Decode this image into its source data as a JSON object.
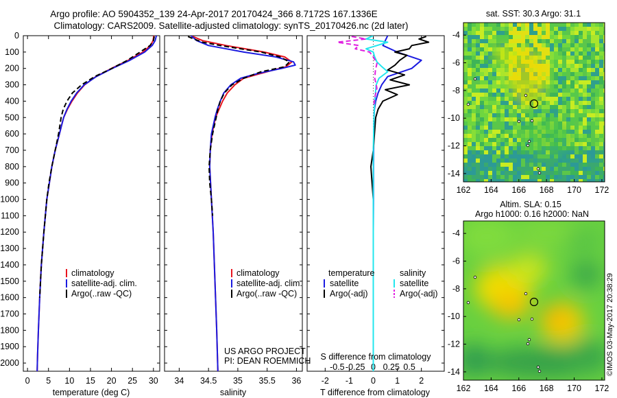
{
  "title": {
    "line1": "Argo profile: AO 5904352_139 24-Apr-2017 20170424_366 8.7172S 167.1336E",
    "line2": "Climatology: CARS2009. Satellite-adjusted climatology: synTS_20170426.nc (2d later)"
  },
  "colors": {
    "climatology": "#e8141e",
    "satellite": "#1a1ae0",
    "argo": "#000000",
    "satellite_salinity": "#22e6ee",
    "argo_salinity_adj": "#e020e0"
  },
  "depth_axis": {
    "ylim": [
      0,
      2050
    ],
    "ticks": [
      "0",
      "100",
      "200",
      "300",
      "400",
      "500",
      "600",
      "700",
      "800",
      "900",
      "1000",
      "1100",
      "1200",
      "1300",
      "1400",
      "1500",
      "1600",
      "1700",
      "1800",
      "1900",
      "2000"
    ]
  },
  "chart_data": [
    {
      "type": "line",
      "name": "temperature-panel",
      "xlabel": "temperature (deg C)",
      "xlim": [
        -1,
        31.5
      ],
      "xticks": [
        "0",
        "5",
        "10",
        "15",
        "20",
        "25",
        "30"
      ],
      "legend": [
        "climatology",
        "satellite-adj. clim.",
        "Argo(..raw -QC)"
      ],
      "series": [
        {
          "name": "climatology",
          "color": "#e8141e",
          "depth": [
            0,
            30,
            60,
            100,
            150,
            200,
            250,
            300,
            350,
            400,
            450,
            500,
            550,
            600,
            700,
            800,
            900,
            1000,
            1200,
            1400,
            1600,
            1800,
            1950,
            2050
          ],
          "values": [
            30.1,
            29.9,
            29.3,
            27.5,
            24.0,
            20.0,
            16.3,
            13.6,
            11.9,
            10.6,
            9.5,
            8.6,
            8.1,
            7.6,
            6.6,
            5.8,
            5.2,
            4.6,
            3.9,
            3.3,
            2.9,
            2.6,
            2.4,
            2.3
          ]
        },
        {
          "name": "satellite-adj. clim.",
          "color": "#1a1ae0",
          "depth": [
            0,
            30,
            60,
            100,
            150,
            200,
            250,
            300,
            350,
            400,
            450,
            500,
            550,
            600,
            700,
            800,
            900,
            1000,
            1200,
            1400,
            1600,
            1800,
            1950,
            2050
          ],
          "values": [
            30.7,
            30.4,
            29.7,
            27.9,
            24.4,
            20.2,
            16.4,
            13.5,
            11.7,
            10.4,
            9.4,
            8.6,
            8.1,
            7.6,
            6.6,
            5.8,
            5.2,
            4.6,
            3.9,
            3.3,
            2.9,
            2.6,
            2.4,
            2.3
          ]
        },
        {
          "name": "Argo(..raw -QC)",
          "color": "#000000",
          "dashed": true,
          "depth": [
            5,
            30,
            60,
            100,
            150,
            200,
            250,
            300,
            350,
            400,
            450,
            500,
            550,
            600,
            700,
            800,
            900,
            1000,
            1200,
            1400,
            1600
          ],
          "values": [
            30.2,
            30.0,
            29.2,
            26.8,
            23.8,
            20.1,
            16.0,
            12.9,
            10.7,
            9.4,
            8.5,
            8.0,
            7.7,
            7.4,
            6.6,
            5.8,
            5.1,
            4.6,
            3.9,
            3.3,
            2.9
          ]
        }
      ]
    },
    {
      "type": "line",
      "name": "salinity-panel",
      "xlabel": "salinity",
      "xlim": [
        33.75,
        36.1
      ],
      "xticks": [
        "34",
        "34.5",
        "35",
        "35.5",
        "36"
      ],
      "legend": [
        "climatology",
        "satellite-adj. clim.",
        "Argo(..raw -QC)"
      ],
      "annotations": [
        "US ARGO PROJECT",
        "PI: DEAN ROEMMICH"
      ],
      "series": [
        {
          "name": "climatology",
          "color": "#e8141e",
          "depth": [
            0,
            30,
            60,
            100,
            130,
            160,
            190,
            220,
            260,
            300,
            350,
            400,
            450,
            500,
            600,
            700,
            800,
            1000,
            1200,
            1400,
            1600,
            1800,
            2050
          ],
          "values": [
            34.2,
            34.4,
            34.8,
            35.45,
            35.8,
            35.92,
            35.82,
            35.5,
            35.1,
            34.95,
            34.82,
            34.74,
            34.68,
            34.62,
            34.56,
            34.53,
            34.52,
            34.55,
            34.58,
            34.6,
            34.62,
            34.64,
            34.66
          ]
        },
        {
          "name": "satellite-adj. clim.",
          "color": "#1a1ae0",
          "depth": [
            0,
            30,
            60,
            100,
            130,
            160,
            180,
            200,
            230,
            260,
            300,
            350,
            400,
            450,
            500,
            600,
            700,
            800,
            1000,
            1200,
            1400,
            1600,
            1800,
            2050
          ],
          "values": [
            34.2,
            34.3,
            34.5,
            35.1,
            35.65,
            35.95,
            35.98,
            35.75,
            35.35,
            35.05,
            34.88,
            34.76,
            34.7,
            34.65,
            34.61,
            34.55,
            34.53,
            34.52,
            34.55,
            34.58,
            34.6,
            34.62,
            34.64,
            34.66
          ]
        },
        {
          "name": "Argo(..raw -QC)",
          "color": "#000000",
          "dashed": true,
          "depth": [
            5,
            20,
            40,
            60,
            80,
            100,
            130,
            160,
            190,
            220,
            260,
            300,
            350,
            400,
            450,
            500,
            600,
            700,
            800,
            900,
            1000,
            1100
          ],
          "values": [
            34.15,
            34.25,
            34.4,
            34.7,
            35.05,
            35.4,
            35.72,
            35.88,
            35.8,
            35.4,
            35.1,
            34.9,
            34.77,
            34.7,
            34.66,
            34.63,
            34.57,
            34.53,
            34.51,
            34.52,
            34.55,
            34.57
          ]
        }
      ]
    },
    {
      "type": "line",
      "name": "difference-panel",
      "xlabel": "T difference from climatology",
      "xlabel_top": "S difference from climatology",
      "xlim": [
        -2.75,
        2.95
      ],
      "xticks": [
        "-2",
        "-1",
        "0",
        "1",
        "2"
      ],
      "sticks": [
        "-0.5",
        "-0.25",
        "0",
        "0.25",
        "0.5"
      ],
      "legend_left_title": "temperature",
      "legend_right_title": "salinity",
      "legend": [
        "satellite",
        "Argo(-adj)",
        "satellite",
        "Argo(-adj)"
      ],
      "series": [
        {
          "name": "T satellite",
          "color": "#1a1ae0",
          "depth": [
            0,
            30,
            60,
            100,
            150,
            200,
            250,
            300,
            350,
            400,
            450,
            500,
            600,
            800,
            1000,
            1200,
            1500,
            2050
          ],
          "values": [
            0.6,
            0.5,
            0.4,
            1.0,
            2.0,
            1.6,
            0.6,
            0.35,
            0.2,
            0.1,
            0.05,
            0.03,
            0.02,
            0.01,
            0.01,
            0.0,
            0.0,
            0.0
          ]
        },
        {
          "name": "T Argo(-adj)",
          "color": "#000000",
          "depth": [
            5,
            20,
            40,
            60,
            80,
            100,
            120,
            150,
            180,
            210,
            240,
            270,
            300,
            330,
            360,
            400,
            450,
            500,
            600,
            700,
            800,
            900,
            1000,
            1100,
            1200,
            1300,
            1400,
            1500,
            1600
          ],
          "values": [
            2.2,
            1.9,
            2.3,
            1.6,
            1.5,
            0.9,
            1.4,
            1.1,
            0.9,
            0.6,
            1.3,
            0.7,
            1.5,
            0.5,
            1.0,
            0.4,
            0.2,
            0.1,
            0.05,
            0.0,
            -0.1,
            -0.05,
            0.0,
            0.0,
            0.0,
            0.0,
            0.0,
            0.0,
            0.0
          ]
        },
        {
          "name": "S satellite",
          "color": "#22e6ee",
          "depth": [
            0,
            20,
            40,
            60,
            80,
            100,
            130,
            160,
            190,
            220,
            260,
            300,
            400,
            500,
            700,
            1000,
            1500,
            2050
          ],
          "values": [
            0.0,
            -0.1,
            0.2,
            0.05,
            -0.1,
            0.0,
            0.02,
            0.05,
            0.12,
            0.2,
            0.08,
            0.04,
            0.02,
            0.01,
            0.0,
            0.0,
            0.0,
            0.0
          ]
        },
        {
          "name": "S Argo(-adj)",
          "color": "#e020e0",
          "dashed": true,
          "depth": [
            5,
            20,
            40,
            60,
            80,
            100,
            130,
            170,
            210,
            260,
            320,
            380,
            420
          ],
          "values": [
            -0.3,
            -0.1,
            -0.5,
            -0.2,
            -0.25,
            -0.05,
            0.0,
            0.05,
            0.03,
            0.02,
            0.05,
            0.02,
            0.01
          ]
        }
      ]
    },
    {
      "type": "heatmap",
      "name": "sst-map",
      "title": "sat. SST: 30.3 Argo: 31.1",
      "xlim": [
        162,
        172.2
      ],
      "ylim": [
        -14.6,
        -3.1
      ],
      "xticks": [
        "162",
        "164",
        "166",
        "168",
        "170",
        "172"
      ],
      "yticks": [
        "-4",
        "-6",
        "-8",
        "-10",
        "-12",
        "-14"
      ],
      "argo_marker": {
        "lon": 167.13,
        "lat": -8.72
      }
    },
    {
      "type": "heatmap",
      "name": "sla-map",
      "title": "Altim. SLA: 0.15",
      "subtitle": "Argo h1000: 0.16 h2000: NaN",
      "xlim": [
        162,
        172.2
      ],
      "ylim": [
        -14.6,
        -3.1
      ],
      "xticks": [
        "162",
        "164",
        "166",
        "168",
        "170",
        "172"
      ],
      "yticks": [
        "-4",
        "-6",
        "-8",
        "-10",
        "-12",
        "-14"
      ],
      "argo_marker": {
        "lon": 167.13,
        "lat": -8.72
      }
    }
  ],
  "credit": "©IMOS 03-May-2017 20:38:29"
}
